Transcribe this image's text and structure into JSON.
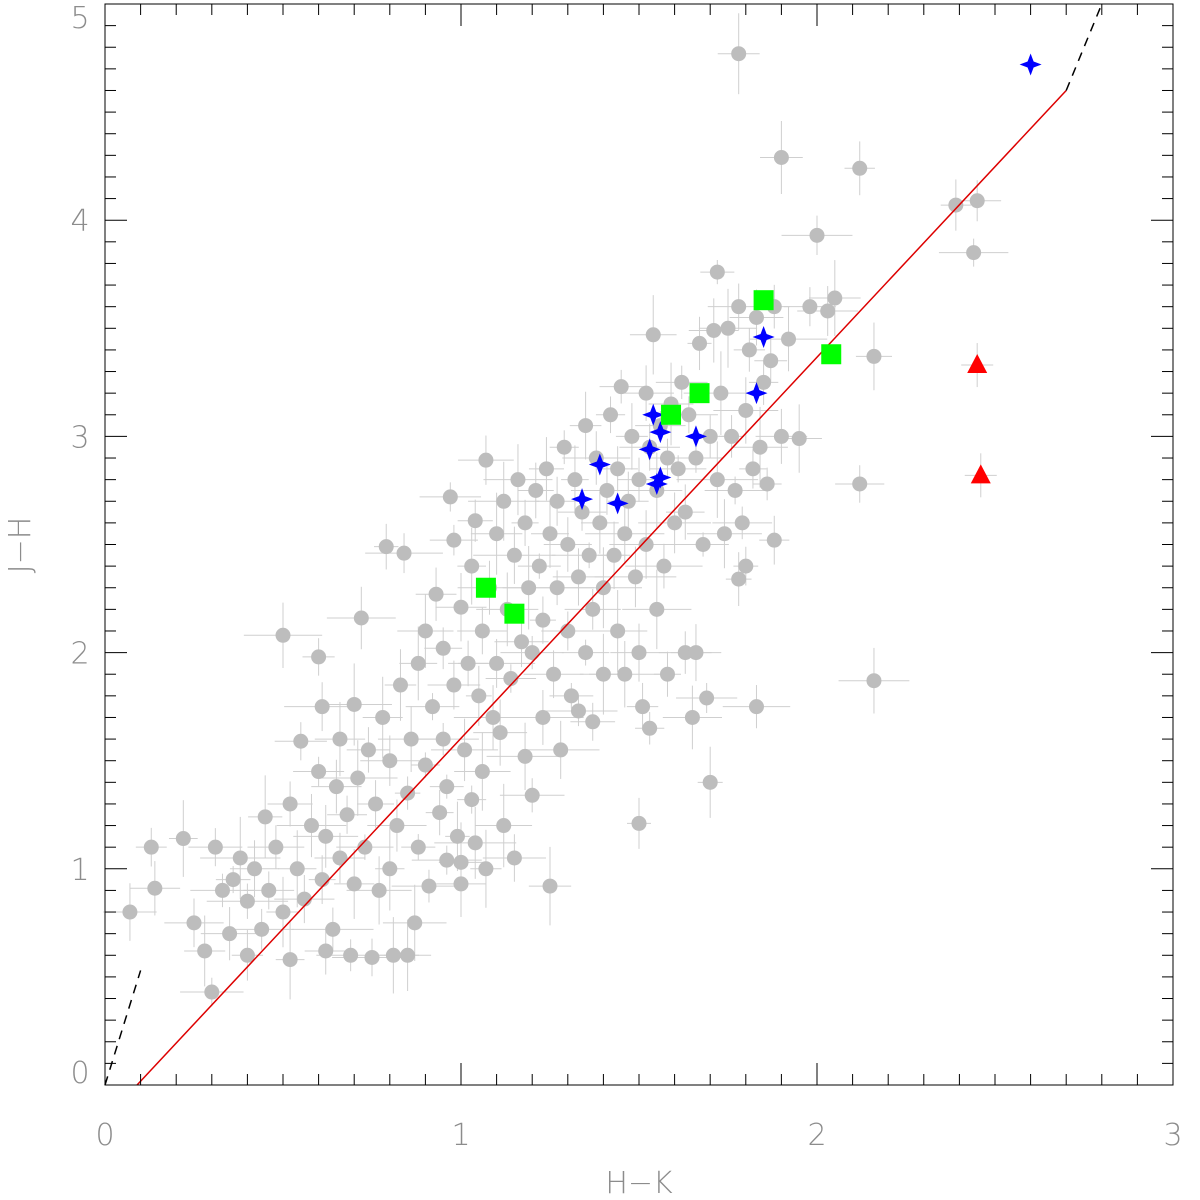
{
  "chart_data": {
    "type": "scatter",
    "xlabel": "H−K",
    "ylabel": "J−H",
    "xlim": [
      0,
      3
    ],
    "ylim": [
      0,
      5
    ],
    "x_ticks": [
      {
        "value": 0,
        "label": "0"
      },
      {
        "value": 1,
        "label": "1"
      },
      {
        "value": 2,
        "label": "2"
      },
      {
        "value": 3,
        "label": "3"
      }
    ],
    "y_ticks": [
      {
        "value": 0,
        "label": "0"
      },
      {
        "value": 1,
        "label": "1"
      },
      {
        "value": 2,
        "label": "2"
      },
      {
        "value": 3,
        "label": "3"
      },
      {
        "value": 4,
        "label": "4"
      },
      {
        "value": 5,
        "label": "5"
      }
    ],
    "grid": false,
    "legend": "none",
    "colors": {
      "background_points": "#bdbdbd",
      "stars": "#0000ff",
      "squares": "#00ff00",
      "triangles": "#ff0000",
      "line": "#dd0000",
      "dashed": "#000000"
    },
    "lines": [
      {
        "style": "solid",
        "color": "#dd0000",
        "points": [
          [
            0.09,
            0.0
          ],
          [
            2.7,
            4.6
          ]
        ]
      },
      {
        "style": "dashed",
        "color": "#000000",
        "points": [
          [
            0.0,
            0.0
          ],
          [
            0.1,
            0.53
          ]
        ]
      },
      {
        "style": "dashed",
        "color": "#000000",
        "points": [
          [
            2.7,
            4.6
          ],
          [
            2.8,
            5.0
          ]
        ]
      }
    ],
    "series": [
      {
        "marker": "circle",
        "color": "#bdbdbd",
        "error_bars": true,
        "points": [
          [
            0.07,
            0.8
          ],
          [
            0.13,
            1.1
          ],
          [
            0.14,
            0.91
          ],
          [
            0.22,
            1.14
          ],
          [
            0.25,
            0.75
          ],
          [
            0.28,
            0.62
          ],
          [
            0.3,
            0.43
          ],
          [
            0.31,
            1.1
          ],
          [
            0.33,
            0.9
          ],
          [
            0.35,
            0.7
          ],
          [
            0.36,
            0.95
          ],
          [
            0.38,
            1.05
          ],
          [
            0.4,
            0.6
          ],
          [
            0.4,
            0.85
          ],
          [
            0.42,
            1.0
          ],
          [
            0.44,
            0.72
          ],
          [
            0.45,
            1.24
          ],
          [
            0.46,
            0.9
          ],
          [
            0.48,
            1.1
          ],
          [
            0.5,
            0.8
          ],
          [
            0.52,
            1.3
          ],
          [
            0.52,
            0.58
          ],
          [
            0.54,
            1.0
          ],
          [
            0.55,
            1.59
          ],
          [
            0.56,
            0.86
          ],
          [
            0.58,
            1.2
          ],
          [
            0.6,
            1.98
          ],
          [
            0.6,
            1.45
          ],
          [
            0.61,
            0.95
          ],
          [
            0.62,
            1.15
          ],
          [
            0.64,
            0.72
          ],
          [
            0.65,
            1.38
          ],
          [
            0.66,
            1.6
          ],
          [
            0.66,
            1.05
          ],
          [
            0.68,
            1.25
          ],
          [
            0.69,
            0.6
          ],
          [
            0.7,
            0.93
          ],
          [
            0.7,
            1.76
          ],
          [
            0.71,
            1.42
          ],
          [
            0.72,
            2.16
          ],
          [
            0.73,
            1.1
          ],
          [
            0.74,
            1.55
          ],
          [
            0.76,
            1.3
          ],
          [
            0.77,
            0.9
          ],
          [
            0.78,
            1.7
          ],
          [
            0.79,
            2.49
          ],
          [
            0.8,
            1.5
          ],
          [
            0.8,
            1.0
          ],
          [
            0.81,
            0.6
          ],
          [
            0.82,
            1.2
          ],
          [
            0.83,
            1.85
          ],
          [
            0.84,
            2.46
          ],
          [
            0.85,
            1.35
          ],
          [
            0.86,
            1.6
          ],
          [
            0.87,
            0.75
          ],
          [
            0.88,
            1.95
          ],
          [
            0.88,
            1.1
          ],
          [
            0.9,
            1.48
          ],
          [
            0.9,
            2.1
          ],
          [
            0.91,
            0.92
          ],
          [
            0.92,
            1.75
          ],
          [
            0.93,
            2.27
          ],
          [
            0.94,
            1.26
          ],
          [
            0.95,
            2.02
          ],
          [
            0.95,
            1.6
          ],
          [
            0.96,
            1.38
          ],
          [
            0.97,
            2.72
          ],
          [
            0.98,
            2.52
          ],
          [
            0.98,
            1.85
          ],
          [
            0.99,
            1.15
          ],
          [
            1.0,
            2.21
          ],
          [
            1.0,
            1.03
          ],
          [
            1.01,
            1.55
          ],
          [
            1.02,
            1.95
          ],
          [
            1.03,
            2.4
          ],
          [
            1.03,
            1.32
          ],
          [
            1.04,
            2.61
          ],
          [
            1.05,
            1.8
          ],
          [
            1.06,
            2.1
          ],
          [
            1.06,
            1.45
          ],
          [
            1.07,
            2.89
          ],
          [
            1.07,
            1.0
          ],
          [
            1.08,
            2.3
          ],
          [
            1.09,
            1.7
          ],
          [
            1.1,
            2.55
          ],
          [
            1.1,
            1.95
          ],
          [
            1.11,
            1.63
          ],
          [
            1.12,
            2.7
          ],
          [
            1.12,
            1.2
          ],
          [
            1.13,
            2.2
          ],
          [
            1.14,
            1.88
          ],
          [
            1.15,
            2.45
          ],
          [
            1.15,
            1.05
          ],
          [
            1.16,
            2.8
          ],
          [
            1.17,
            2.05
          ],
          [
            1.18,
            1.52
          ],
          [
            1.18,
            2.6
          ],
          [
            1.19,
            2.3
          ],
          [
            1.2,
            2.0
          ],
          [
            1.2,
            1.34
          ],
          [
            1.21,
            2.75
          ],
          [
            1.22,
            2.4
          ],
          [
            1.23,
            1.7
          ],
          [
            1.23,
            2.15
          ],
          [
            1.24,
            2.85
          ],
          [
            1.25,
            2.55
          ],
          [
            1.25,
            0.92
          ],
          [
            1.26,
            1.9
          ],
          [
            1.27,
            2.3
          ],
          [
            1.27,
            2.7
          ],
          [
            1.28,
            1.55
          ],
          [
            1.29,
            2.95
          ],
          [
            1.3,
            2.1
          ],
          [
            1.3,
            2.5
          ],
          [
            1.31,
            1.8
          ],
          [
            1.32,
            2.8
          ],
          [
            1.33,
            2.35
          ],
          [
            1.33,
            1.73
          ],
          [
            1.34,
            2.65
          ],
          [
            1.35,
            2.0
          ],
          [
            1.35,
            3.05
          ],
          [
            1.36,
            2.45
          ],
          [
            1.37,
            2.2
          ],
          [
            1.37,
            1.68
          ],
          [
            1.38,
            2.9
          ],
          [
            1.39,
            2.6
          ],
          [
            1.4,
            2.3
          ],
          [
            1.4,
            1.9
          ],
          [
            1.41,
            2.75
          ],
          [
            1.42,
            3.1
          ],
          [
            1.43,
            2.45
          ],
          [
            1.44,
            2.1
          ],
          [
            1.44,
            2.85
          ],
          [
            1.45,
            3.23
          ],
          [
            1.46,
            2.55
          ],
          [
            1.46,
            1.9
          ],
          [
            1.47,
            2.7
          ],
          [
            1.48,
            3.0
          ],
          [
            1.49,
            2.35
          ],
          [
            1.5,
            2.8
          ],
          [
            1.5,
            2.0
          ],
          [
            1.51,
            1.75
          ],
          [
            1.52,
            2.5
          ],
          [
            1.52,
            3.2
          ],
          [
            1.53,
            2.95
          ],
          [
            1.53,
            1.65
          ],
          [
            1.54,
            3.47
          ],
          [
            1.55,
            2.2
          ],
          [
            1.55,
            2.75
          ],
          [
            1.56,
            3.05
          ],
          [
            1.57,
            2.4
          ],
          [
            1.58,
            2.9
          ],
          [
            1.58,
            1.9
          ],
          [
            1.59,
            3.15
          ],
          [
            1.6,
            2.6
          ],
          [
            1.61,
            2.85
          ],
          [
            1.62,
            3.25
          ],
          [
            1.63,
            2.0
          ],
          [
            1.63,
            2.65
          ],
          [
            1.64,
            3.1
          ],
          [
            1.65,
            1.7
          ],
          [
            1.66,
            2.9
          ],
          [
            1.67,
            3.43
          ],
          [
            1.68,
            2.5
          ],
          [
            1.69,
            1.79
          ],
          [
            1.7,
            3.0
          ],
          [
            1.71,
            3.49
          ],
          [
            1.72,
            2.8
          ],
          [
            1.72,
            3.76
          ],
          [
            1.73,
            3.2
          ],
          [
            1.74,
            2.55
          ],
          [
            1.75,
            3.5
          ],
          [
            1.76,
            3.0
          ],
          [
            1.77,
            2.75
          ],
          [
            1.78,
            3.6
          ],
          [
            1.78,
            4.77
          ],
          [
            1.79,
            2.6
          ],
          [
            1.8,
            3.12
          ],
          [
            1.8,
            2.4
          ],
          [
            1.81,
            3.4
          ],
          [
            1.82,
            2.85
          ],
          [
            1.83,
            3.55
          ],
          [
            1.84,
            2.95
          ],
          [
            1.85,
            3.25
          ],
          [
            1.86,
            2.78
          ],
          [
            1.87,
            3.35
          ],
          [
            1.88,
            3.6
          ],
          [
            1.88,
            2.52
          ],
          [
            1.9,
            4.29
          ],
          [
            1.9,
            3.0
          ],
          [
            1.92,
            3.45
          ],
          [
            1.95,
            2.99
          ],
          [
            1.98,
            3.6
          ],
          [
            2.0,
            3.93
          ],
          [
            2.03,
            3.58
          ],
          [
            2.05,
            3.64
          ],
          [
            2.12,
            4.24
          ],
          [
            2.12,
            2.78
          ],
          [
            2.16,
            1.87
          ],
          [
            2.16,
            3.37
          ],
          [
            2.39,
            4.07
          ],
          [
            2.44,
            3.85
          ],
          [
            2.45,
            4.09
          ],
          [
            1.5,
            1.21
          ],
          [
            1.83,
            1.75
          ],
          [
            1.78,
            2.34
          ],
          [
            1.66,
            2.0
          ],
          [
            1.7,
            1.4
          ],
          [
            1.0,
            0.93
          ],
          [
            0.96,
            1.04
          ],
          [
            1.04,
            1.12
          ],
          [
            0.75,
            0.59
          ],
          [
            0.62,
            0.62
          ],
          [
            0.5,
            2.08
          ],
          [
            0.61,
            1.75
          ],
          [
            0.85,
            0.6
          ]
        ]
      },
      {
        "marker": "star",
        "color": "#0000ff",
        "points": [
          [
            1.34,
            2.71
          ],
          [
            1.39,
            2.87
          ],
          [
            1.44,
            2.69
          ],
          [
            1.53,
            2.94
          ],
          [
            1.54,
            3.1
          ],
          [
            1.55,
            2.78
          ],
          [
            1.56,
            3.02
          ],
          [
            1.56,
            2.81
          ],
          [
            1.66,
            3.0
          ],
          [
            1.83,
            3.2
          ],
          [
            1.85,
            3.46
          ],
          [
            2.6,
            4.72
          ]
        ]
      },
      {
        "marker": "square",
        "color": "#00ff00",
        "points": [
          [
            1.07,
            2.3
          ],
          [
            1.15,
            2.18
          ],
          [
            1.59,
            3.1
          ],
          [
            1.67,
            3.2
          ],
          [
            1.85,
            3.63
          ],
          [
            2.04,
            3.38
          ]
        ]
      },
      {
        "marker": "triangle",
        "color": "#ff0000",
        "points": [
          [
            2.45,
            3.33
          ],
          [
            2.46,
            2.82
          ]
        ]
      }
    ]
  }
}
